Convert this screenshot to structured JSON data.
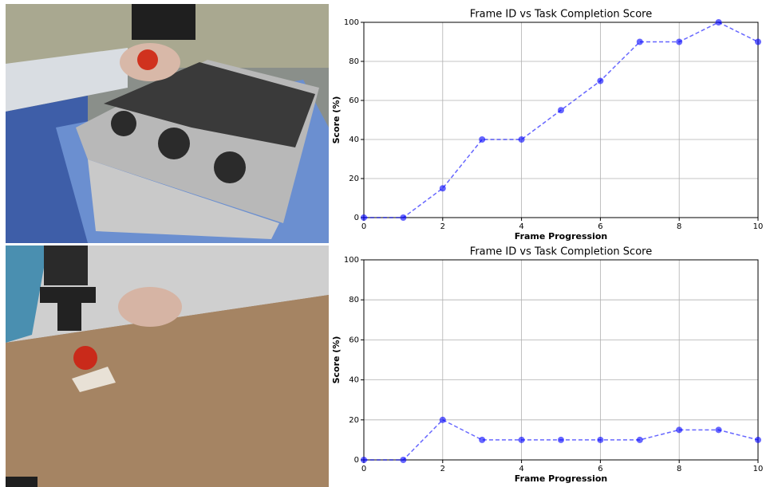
{
  "chart_data": [
    {
      "type": "line",
      "title": "Frame ID vs Task Completion Score",
      "xlabel": "Frame Progression",
      "ylabel": "Score (%)",
      "x": [
        0,
        1,
        2,
        3,
        4,
        5,
        6,
        7,
        8,
        9,
        10
      ],
      "values": [
        0,
        0,
        15,
        40,
        40,
        55,
        70,
        90,
        90,
        100,
        90
      ],
      "color": "#0000ff",
      "linestyle": "dashed",
      "marker": "circle",
      "xlim": [
        0,
        10
      ],
      "xticks": [
        0,
        2,
        4,
        6,
        8,
        10
      ],
      "ylim": [
        0,
        100
      ],
      "yticks": [
        0,
        20,
        40,
        60,
        80,
        100
      ],
      "grid": true
    },
    {
      "type": "line",
      "title": "Frame ID vs Task Completion Score",
      "xlabel": "Frame Progression",
      "ylabel": "Score (%)",
      "x": [
        0,
        1,
        2,
        3,
        4,
        5,
        6,
        7,
        8,
        9,
        10
      ],
      "values": [
        0,
        0,
        20,
        10,
        10,
        10,
        10,
        10,
        15,
        15,
        10
      ],
      "color": "#0000ff",
      "linestyle": "dashed",
      "marker": "circle",
      "xlim": [
        0,
        10
      ],
      "xticks": [
        0,
        2,
        4,
        6,
        8,
        10
      ],
      "ylim": [
        0,
        100
      ],
      "yticks": [
        0,
        20,
        40,
        60,
        80,
        100
      ],
      "grid": true
    }
  ]
}
